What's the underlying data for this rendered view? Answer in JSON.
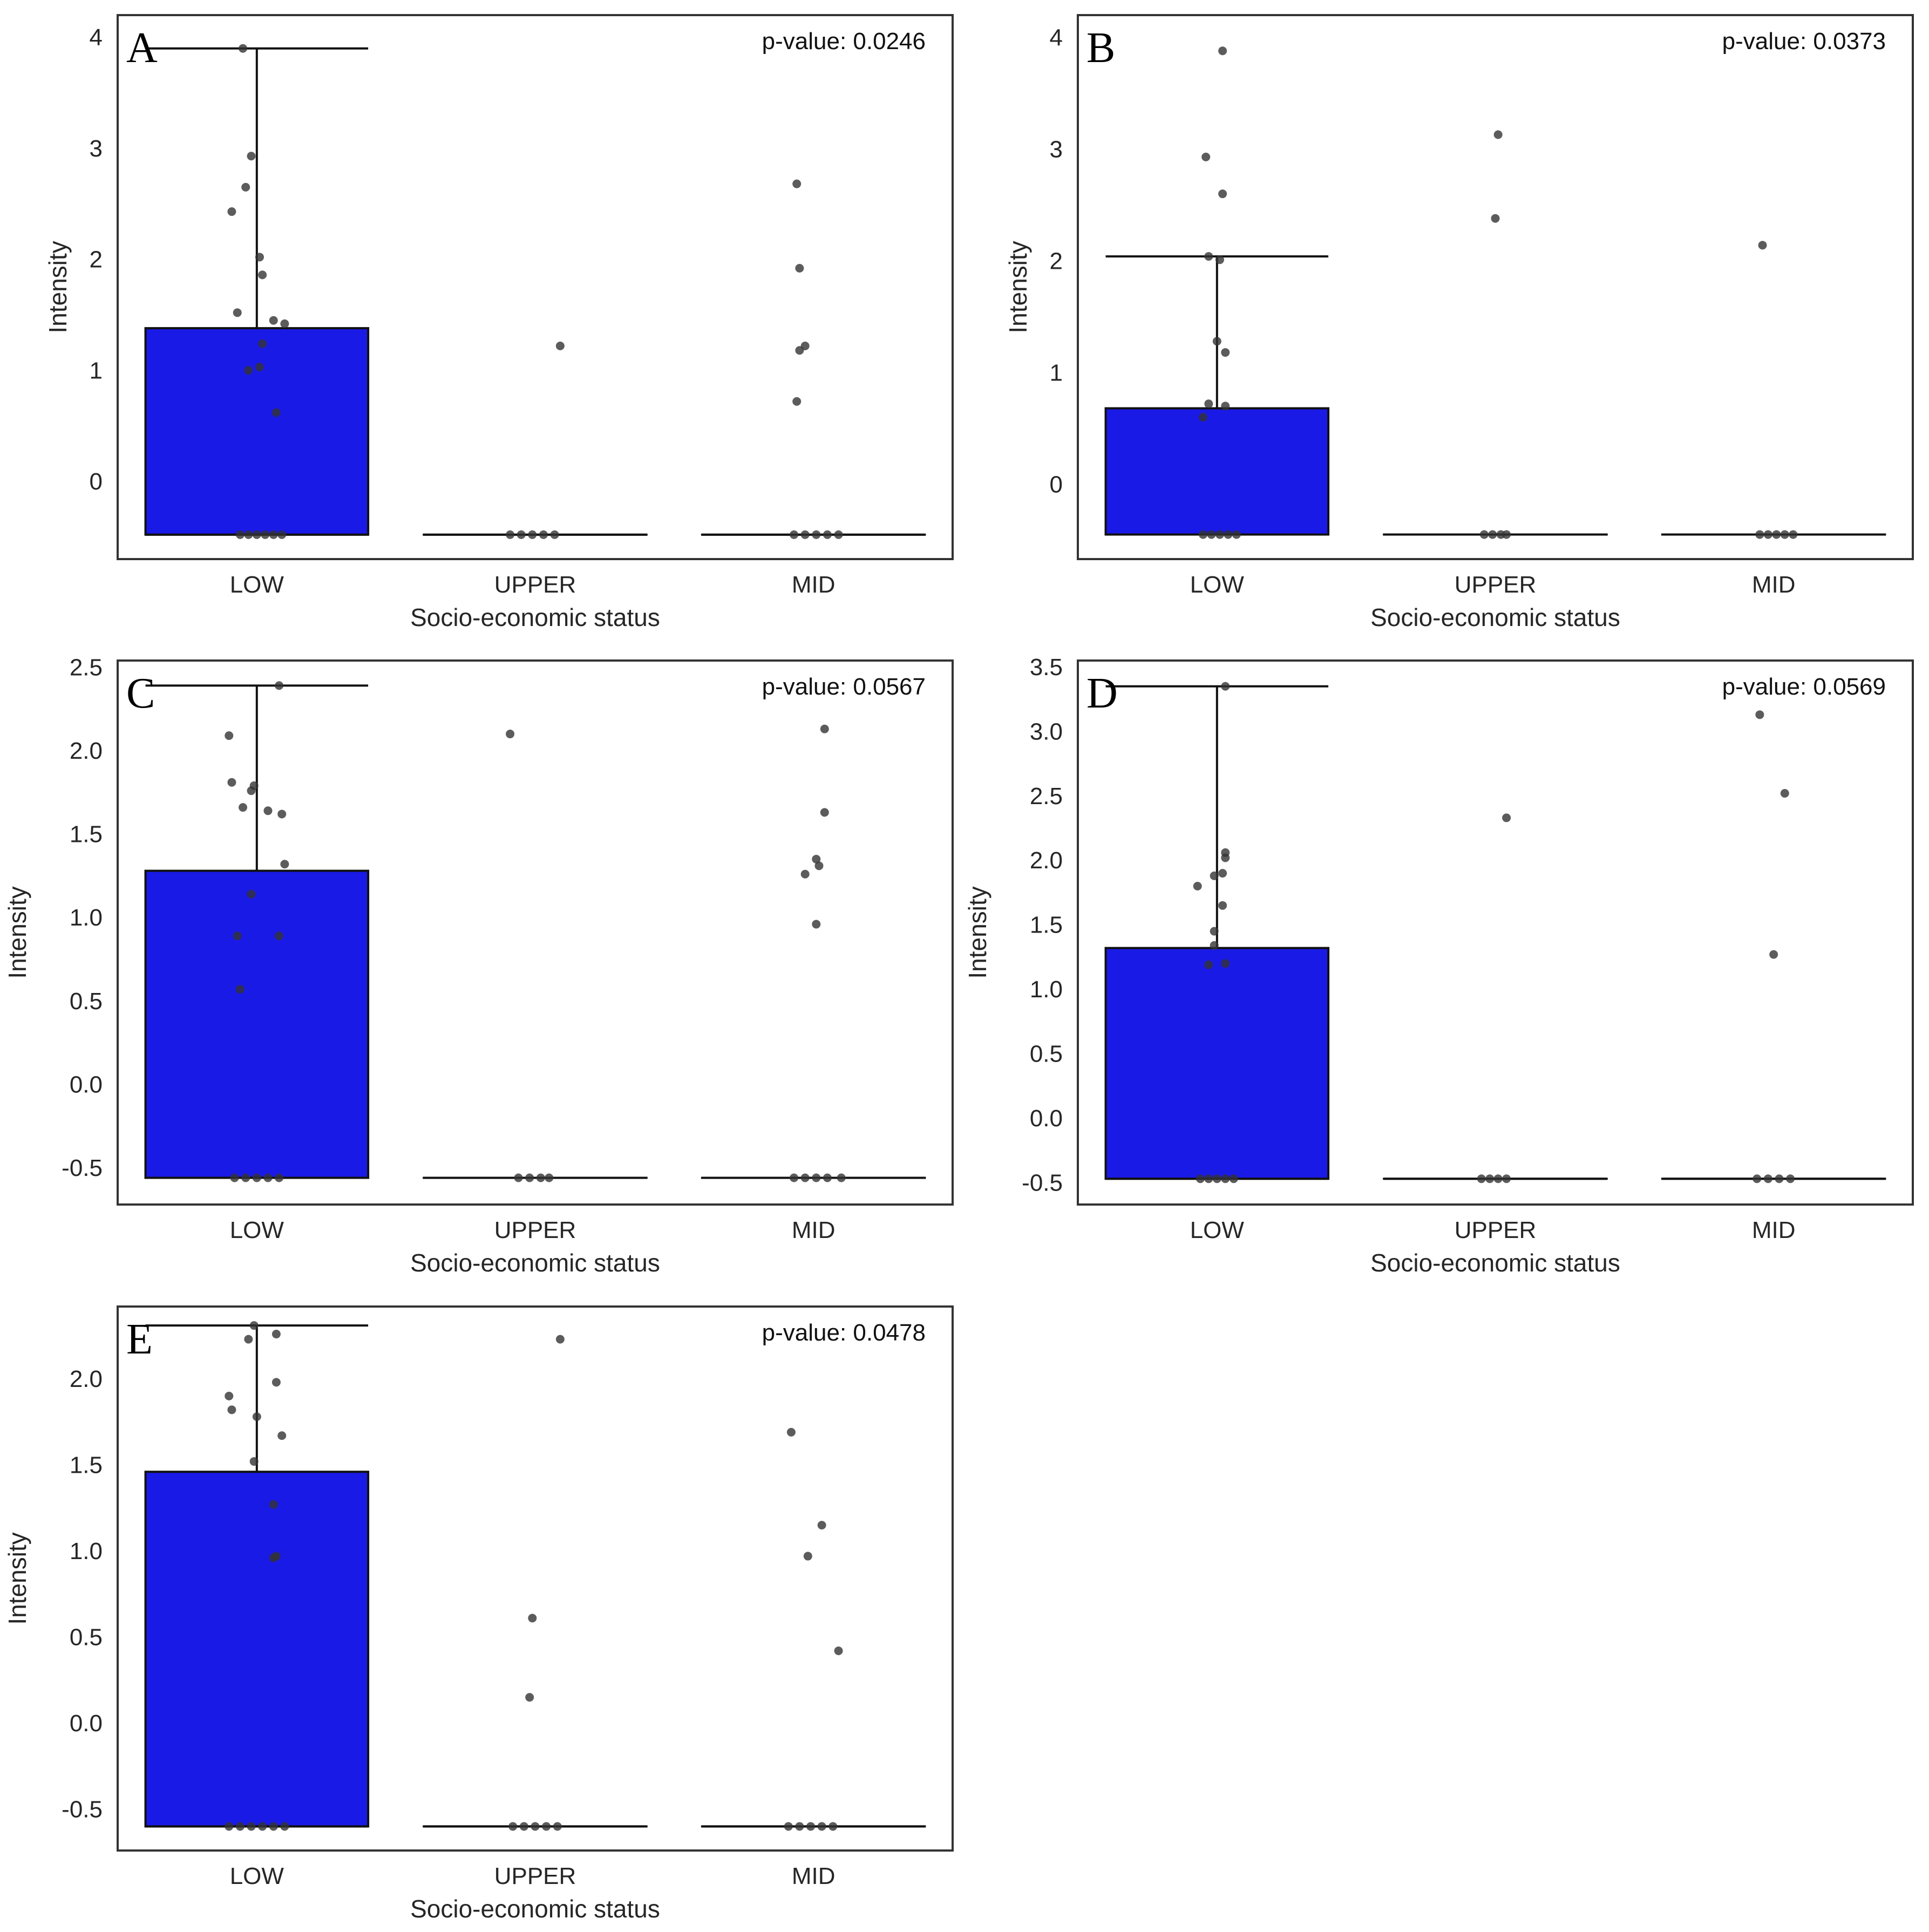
{
  "colors": {
    "box_fill": "#1a1ae6",
    "box_edge": "#111111",
    "point": "#333333",
    "frame": "#333333"
  },
  "chart_data": [
    {
      "type": "box+strip",
      "panel": "A",
      "pvalue_text": "p-value: 0.0246",
      "xlabel": "Socio-economic status",
      "ylabel": "Intensity",
      "categories": [
        "LOW",
        "UPPER",
        "MID"
      ],
      "ylim": [
        -0.7,
        4.2
      ],
      "yticks": [
        0,
        1,
        2,
        3,
        4
      ],
      "ytick_labels": [
        "0",
        "1",
        "2",
        "3",
        "4"
      ],
      "boxes": [
        {
          "q1": -0.48,
          "q3": 1.38,
          "whisker_low": -0.48,
          "whisker_high": 3.9
        },
        {
          "q1": -0.48,
          "q3": -0.48,
          "whisker_low": -0.48,
          "whisker_high": -0.48
        },
        {
          "q1": -0.48,
          "q3": -0.48,
          "whisker_low": -0.48,
          "whisker_high": -0.48
        }
      ],
      "points": [
        {
          "cat": 0,
          "off": -0.05,
          "y": 3.9
        },
        {
          "cat": 0,
          "off": -0.02,
          "y": 2.93
        },
        {
          "cat": 0,
          "off": -0.04,
          "y": 2.65
        },
        {
          "cat": 0,
          "off": -0.09,
          "y": 2.43
        },
        {
          "cat": 0,
          "off": 0.01,
          "y": 2.02
        },
        {
          "cat": 0,
          "off": 0.02,
          "y": 1.86
        },
        {
          "cat": 0,
          "off": -0.07,
          "y": 1.52
        },
        {
          "cat": 0,
          "off": 0.06,
          "y": 1.45
        },
        {
          "cat": 0,
          "off": 0.1,
          "y": 1.42
        },
        {
          "cat": 0,
          "off": 0.02,
          "y": 1.24
        },
        {
          "cat": 0,
          "off": 0.01,
          "y": 1.03
        },
        {
          "cat": 0,
          "off": -0.03,
          "y": 1.0
        },
        {
          "cat": 0,
          "off": 0.07,
          "y": 0.62
        },
        {
          "cat": 0,
          "off": -0.06,
          "y": -0.48
        },
        {
          "cat": 0,
          "off": -0.03,
          "y": -0.48
        },
        {
          "cat": 0,
          "off": 0.0,
          "y": -0.48
        },
        {
          "cat": 0,
          "off": 0.03,
          "y": -0.48
        },
        {
          "cat": 0,
          "off": 0.06,
          "y": -0.48
        },
        {
          "cat": 0,
          "off": 0.09,
          "y": -0.48
        },
        {
          "cat": 1,
          "off": 0.09,
          "y": 1.22
        },
        {
          "cat": 1,
          "off": -0.09,
          "y": -0.48
        },
        {
          "cat": 1,
          "off": -0.05,
          "y": -0.48
        },
        {
          "cat": 1,
          "off": -0.01,
          "y": -0.48
        },
        {
          "cat": 1,
          "off": 0.03,
          "y": -0.48
        },
        {
          "cat": 1,
          "off": 0.07,
          "y": -0.48
        },
        {
          "cat": 2,
          "off": -0.06,
          "y": 2.68
        },
        {
          "cat": 2,
          "off": -0.05,
          "y": 1.92
        },
        {
          "cat": 2,
          "off": -0.03,
          "y": 1.22
        },
        {
          "cat": 2,
          "off": -0.05,
          "y": 1.18
        },
        {
          "cat": 2,
          "off": -0.06,
          "y": 0.72
        },
        {
          "cat": 2,
          "off": -0.07,
          "y": -0.48
        },
        {
          "cat": 2,
          "off": -0.03,
          "y": -0.48
        },
        {
          "cat": 2,
          "off": 0.01,
          "y": -0.48
        },
        {
          "cat": 2,
          "off": 0.05,
          "y": -0.48
        },
        {
          "cat": 2,
          "off": 0.09,
          "y": -0.48
        }
      ]
    },
    {
      "type": "box+strip",
      "panel": "B",
      "pvalue_text": "p-value: 0.0373",
      "xlabel": "Socio-economic status",
      "ylabel": "Intensity",
      "categories": [
        "LOW",
        "UPPER",
        "MID"
      ],
      "ylim": [
        -0.67,
        4.2
      ],
      "yticks": [
        0,
        1,
        2,
        3,
        4
      ],
      "ytick_labels": [
        "0",
        "1",
        "2",
        "3",
        "4"
      ],
      "boxes": [
        {
          "q1": -0.45,
          "q3": 0.68,
          "whisker_low": -0.45,
          "whisker_high": 2.04
        },
        {
          "q1": -0.45,
          "q3": -0.45,
          "whisker_low": -0.45,
          "whisker_high": -0.45
        },
        {
          "q1": -0.45,
          "q3": -0.45,
          "whisker_low": -0.45,
          "whisker_high": -0.45
        }
      ],
      "points": [
        {
          "cat": 0,
          "off": 0.02,
          "y": 3.88
        },
        {
          "cat": 0,
          "off": -0.04,
          "y": 2.93
        },
        {
          "cat": 0,
          "off": 0.02,
          "y": 2.6
        },
        {
          "cat": 0,
          "off": -0.03,
          "y": 2.04
        },
        {
          "cat": 0,
          "off": 0.01,
          "y": 2.01
        },
        {
          "cat": 0,
          "off": 0.0,
          "y": 1.28
        },
        {
          "cat": 0,
          "off": 0.03,
          "y": 1.18
        },
        {
          "cat": 0,
          "off": -0.03,
          "y": 0.72
        },
        {
          "cat": 0,
          "off": 0.03,
          "y": 0.7
        },
        {
          "cat": 0,
          "off": -0.05,
          "y": 0.6
        },
        {
          "cat": 0,
          "off": -0.05,
          "y": -0.45
        },
        {
          "cat": 0,
          "off": -0.02,
          "y": -0.45
        },
        {
          "cat": 0,
          "off": 0.01,
          "y": -0.45
        },
        {
          "cat": 0,
          "off": 0.04,
          "y": -0.45
        },
        {
          "cat": 0,
          "off": 0.07,
          "y": -0.45
        },
        {
          "cat": 1,
          "off": 0.01,
          "y": 3.13
        },
        {
          "cat": 1,
          "off": 0.0,
          "y": 2.38
        },
        {
          "cat": 1,
          "off": -0.04,
          "y": -0.45
        },
        {
          "cat": 1,
          "off": -0.01,
          "y": -0.45
        },
        {
          "cat": 1,
          "off": 0.02,
          "y": -0.45
        },
        {
          "cat": 1,
          "off": 0.04,
          "y": -0.45
        },
        {
          "cat": 2,
          "off": -0.04,
          "y": 2.14
        },
        {
          "cat": 2,
          "off": -0.05,
          "y": -0.45
        },
        {
          "cat": 2,
          "off": -0.02,
          "y": -0.45
        },
        {
          "cat": 2,
          "off": 0.01,
          "y": -0.45
        },
        {
          "cat": 2,
          "off": 0.04,
          "y": -0.45
        },
        {
          "cat": 2,
          "off": 0.07,
          "y": -0.45
        }
      ]
    },
    {
      "type": "box+strip",
      "panel": "C",
      "pvalue_text": "p-value: 0.0567",
      "xlabel": "Socio-economic status",
      "ylabel": "Intensity",
      "categories": [
        "LOW",
        "UPPER",
        "MID"
      ],
      "ylim": [
        -0.72,
        2.54
      ],
      "yticks": [
        -0.5,
        0.0,
        0.5,
        1.0,
        1.5,
        2.0,
        2.5
      ],
      "ytick_labels": [
        "-0.5",
        "0.0",
        "0.5",
        "1.0",
        "1.5",
        "2.0",
        "2.5"
      ],
      "boxes": [
        {
          "q1": -0.56,
          "q3": 1.28,
          "whisker_low": -0.56,
          "whisker_high": 2.39
        },
        {
          "q1": -0.56,
          "q3": -0.56,
          "whisker_low": -0.56,
          "whisker_high": -0.56
        },
        {
          "q1": -0.56,
          "q3": -0.56,
          "whisker_low": -0.56,
          "whisker_high": -0.56
        }
      ],
      "points": [
        {
          "cat": 0,
          "off": 0.08,
          "y": 2.39
        },
        {
          "cat": 0,
          "off": -0.1,
          "y": 2.09
        },
        {
          "cat": 0,
          "off": -0.09,
          "y": 1.81
        },
        {
          "cat": 0,
          "off": -0.01,
          "y": 1.79
        },
        {
          "cat": 0,
          "off": -0.02,
          "y": 1.76
        },
        {
          "cat": 0,
          "off": -0.05,
          "y": 1.66
        },
        {
          "cat": 0,
          "off": 0.04,
          "y": 1.64
        },
        {
          "cat": 0,
          "off": 0.09,
          "y": 1.62
        },
        {
          "cat": 0,
          "off": 0.1,
          "y": 1.32
        },
        {
          "cat": 0,
          "off": -0.02,
          "y": 1.14
        },
        {
          "cat": 0,
          "off": -0.07,
          "y": 0.89
        },
        {
          "cat": 0,
          "off": 0.08,
          "y": 0.89
        },
        {
          "cat": 0,
          "off": -0.06,
          "y": 0.57
        },
        {
          "cat": 0,
          "off": -0.08,
          "y": -0.56
        },
        {
          "cat": 0,
          "off": -0.04,
          "y": -0.56
        },
        {
          "cat": 0,
          "off": 0.0,
          "y": -0.56
        },
        {
          "cat": 0,
          "off": 0.04,
          "y": -0.56
        },
        {
          "cat": 0,
          "off": 0.08,
          "y": -0.56
        },
        {
          "cat": 1,
          "off": -0.09,
          "y": 2.1
        },
        {
          "cat": 1,
          "off": -0.06,
          "y": -0.56
        },
        {
          "cat": 1,
          "off": -0.02,
          "y": -0.56
        },
        {
          "cat": 1,
          "off": 0.02,
          "y": -0.56
        },
        {
          "cat": 1,
          "off": 0.05,
          "y": -0.56
        },
        {
          "cat": 2,
          "off": 0.04,
          "y": 2.13
        },
        {
          "cat": 2,
          "off": 0.04,
          "y": 1.63
        },
        {
          "cat": 2,
          "off": 0.01,
          "y": 1.35
        },
        {
          "cat": 2,
          "off": 0.02,
          "y": 1.31
        },
        {
          "cat": 2,
          "off": -0.03,
          "y": 1.26
        },
        {
          "cat": 2,
          "off": 0.01,
          "y": 0.96
        },
        {
          "cat": 2,
          "off": -0.07,
          "y": -0.56
        },
        {
          "cat": 2,
          "off": -0.03,
          "y": -0.56
        },
        {
          "cat": 2,
          "off": 0.01,
          "y": -0.56
        },
        {
          "cat": 2,
          "off": 0.05,
          "y": -0.56
        },
        {
          "cat": 2,
          "off": 0.1,
          "y": -0.56
        }
      ]
    },
    {
      "type": "box+strip",
      "panel": "D",
      "pvalue_text": "p-value: 0.0569",
      "xlabel": "Socio-economic status",
      "ylabel": "Intensity",
      "categories": [
        "LOW",
        "UPPER",
        "MID"
      ],
      "ylim": [
        -0.67,
        3.55
      ],
      "yticks": [
        -0.5,
        0.0,
        0.5,
        1.0,
        1.5,
        2.0,
        2.5,
        3.0,
        3.5
      ],
      "ytick_labels": [
        "-0.5",
        "0.0",
        "0.5",
        "1.0",
        "1.5",
        "2.0",
        "2.5",
        "3.0",
        "3.5"
      ],
      "boxes": [
        {
          "q1": -0.47,
          "q3": 1.32,
          "whisker_low": -0.47,
          "whisker_high": 3.35
        },
        {
          "q1": -0.47,
          "q3": -0.47,
          "whisker_low": -0.47,
          "whisker_high": -0.47
        },
        {
          "q1": -0.47,
          "q3": -0.47,
          "whisker_low": -0.47,
          "whisker_high": -0.47
        }
      ],
      "points": [
        {
          "cat": 0,
          "off": 0.03,
          "y": 3.35
        },
        {
          "cat": 0,
          "off": 0.03,
          "y": 2.06
        },
        {
          "cat": 0,
          "off": 0.03,
          "y": 2.02
        },
        {
          "cat": 0,
          "off": 0.02,
          "y": 1.9
        },
        {
          "cat": 0,
          "off": -0.01,
          "y": 1.88
        },
        {
          "cat": 0,
          "off": -0.07,
          "y": 1.8
        },
        {
          "cat": 0,
          "off": 0.02,
          "y": 1.65
        },
        {
          "cat": 0,
          "off": -0.01,
          "y": 1.45
        },
        {
          "cat": 0,
          "off": -0.01,
          "y": 1.34
        },
        {
          "cat": 0,
          "off": -0.03,
          "y": 1.19
        },
        {
          "cat": 0,
          "off": 0.03,
          "y": 1.2
        },
        {
          "cat": 0,
          "off": -0.06,
          "y": -0.47
        },
        {
          "cat": 0,
          "off": -0.03,
          "y": -0.47
        },
        {
          "cat": 0,
          "off": 0.0,
          "y": -0.47
        },
        {
          "cat": 0,
          "off": 0.03,
          "y": -0.47
        },
        {
          "cat": 0,
          "off": 0.06,
          "y": -0.47
        },
        {
          "cat": 1,
          "off": 0.04,
          "y": 2.33
        },
        {
          "cat": 1,
          "off": -0.05,
          "y": -0.47
        },
        {
          "cat": 1,
          "off": -0.02,
          "y": -0.47
        },
        {
          "cat": 1,
          "off": 0.01,
          "y": -0.47
        },
        {
          "cat": 1,
          "off": 0.04,
          "y": -0.47
        },
        {
          "cat": 2,
          "off": -0.05,
          "y": 3.13
        },
        {
          "cat": 2,
          "off": 0.04,
          "y": 2.52
        },
        {
          "cat": 2,
          "off": 0.0,
          "y": 1.27
        },
        {
          "cat": 2,
          "off": -0.06,
          "y": -0.47
        },
        {
          "cat": 2,
          "off": -0.02,
          "y": -0.47
        },
        {
          "cat": 2,
          "off": 0.02,
          "y": -0.47
        },
        {
          "cat": 2,
          "off": 0.06,
          "y": -0.47
        }
      ]
    },
    {
      "type": "box+strip",
      "panel": "E",
      "pvalue_text": "p-value: 0.0478",
      "xlabel": "Socio-economic status",
      "ylabel": "Intensity",
      "categories": [
        "LOW",
        "UPPER",
        "MID"
      ],
      "ylim": [
        -0.74,
        2.42
      ],
      "yticks": [
        -0.5,
        0.0,
        0.5,
        1.0,
        1.5,
        2.0
      ],
      "ytick_labels": [
        "-0.5",
        "0.0",
        "0.5",
        "1.0",
        "1.5",
        "2.0"
      ],
      "boxes": [
        {
          "q1": -0.6,
          "q3": 1.46,
          "whisker_low": -0.6,
          "whisker_high": 2.31
        },
        {
          "q1": -0.6,
          "q3": -0.6,
          "whisker_low": -0.6,
          "whisker_high": -0.6
        },
        {
          "q1": -0.6,
          "q3": -0.6,
          "whisker_low": -0.6,
          "whisker_high": -0.6
        }
      ],
      "points": [
        {
          "cat": 0,
          "off": -0.01,
          "y": 2.31
        },
        {
          "cat": 0,
          "off": 0.07,
          "y": 2.26
        },
        {
          "cat": 0,
          "off": -0.03,
          "y": 2.23
        },
        {
          "cat": 0,
          "off": 0.07,
          "y": 1.98
        },
        {
          "cat": 0,
          "off": -0.1,
          "y": 1.9
        },
        {
          "cat": 0,
          "off": -0.09,
          "y": 1.82
        },
        {
          "cat": 0,
          "off": 0.0,
          "y": 1.78
        },
        {
          "cat": 0,
          "off": 0.09,
          "y": 1.67
        },
        {
          "cat": 0,
          "off": -0.01,
          "y": 1.52
        },
        {
          "cat": 0,
          "off": 0.06,
          "y": 1.27
        },
        {
          "cat": 0,
          "off": 0.07,
          "y": 0.97
        },
        {
          "cat": 0,
          "off": 0.06,
          "y": 0.96
        },
        {
          "cat": 0,
          "off": -0.1,
          "y": -0.6
        },
        {
          "cat": 0,
          "off": -0.06,
          "y": -0.6
        },
        {
          "cat": 0,
          "off": -0.02,
          "y": -0.6
        },
        {
          "cat": 0,
          "off": 0.02,
          "y": -0.6
        },
        {
          "cat": 0,
          "off": 0.06,
          "y": -0.6
        },
        {
          "cat": 0,
          "off": 0.1,
          "y": -0.6
        },
        {
          "cat": 1,
          "off": 0.09,
          "y": 2.23
        },
        {
          "cat": 1,
          "off": -0.01,
          "y": 0.61
        },
        {
          "cat": 1,
          "off": -0.02,
          "y": 0.15
        },
        {
          "cat": 1,
          "off": -0.08,
          "y": -0.6
        },
        {
          "cat": 1,
          "off": -0.04,
          "y": -0.6
        },
        {
          "cat": 1,
          "off": 0.0,
          "y": -0.6
        },
        {
          "cat": 1,
          "off": 0.04,
          "y": -0.6
        },
        {
          "cat": 1,
          "off": 0.08,
          "y": -0.6
        },
        {
          "cat": 2,
          "off": -0.08,
          "y": 1.69
        },
        {
          "cat": 2,
          "off": 0.03,
          "y": 1.15
        },
        {
          "cat": 2,
          "off": -0.02,
          "y": 0.97
        },
        {
          "cat": 2,
          "off": 0.09,
          "y": 0.42
        },
        {
          "cat": 2,
          "off": -0.09,
          "y": -0.6
        },
        {
          "cat": 2,
          "off": -0.05,
          "y": -0.6
        },
        {
          "cat": 2,
          "off": -0.01,
          "y": -0.6
        },
        {
          "cat": 2,
          "off": 0.03,
          "y": -0.6
        },
        {
          "cat": 2,
          "off": 0.07,
          "y": -0.6
        }
      ]
    }
  ]
}
